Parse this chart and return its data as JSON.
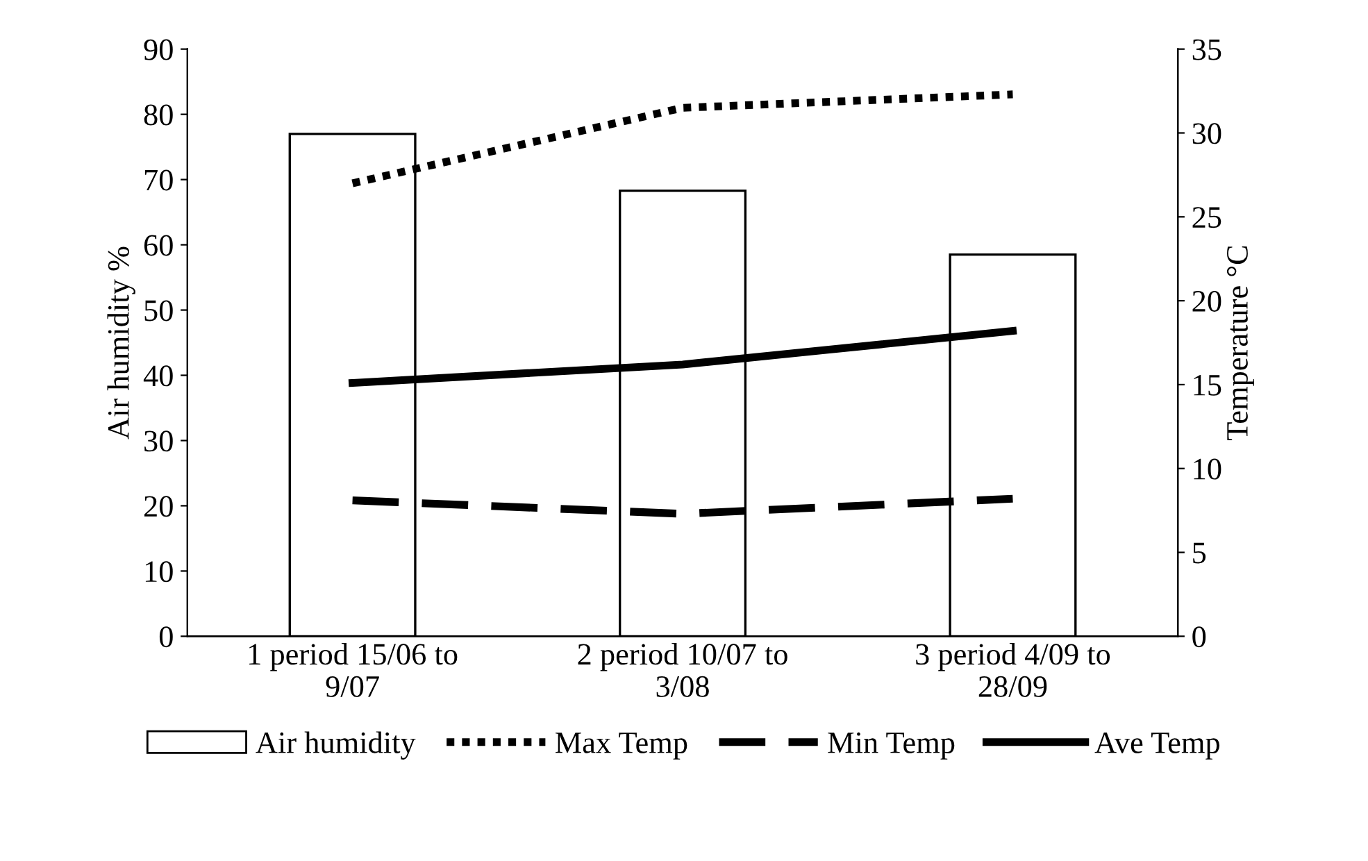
{
  "chart_data": {
    "type": "bar",
    "categories": [
      "1 period 15/06 to\n9/07",
      "2 period 10/07 to\n3/08",
      "3 period 4/09 to\n28/09"
    ],
    "ylabel": "Air humidity %",
    "y2label": "Temperature °C",
    "ylim": [
      0,
      90
    ],
    "yticks": [
      0,
      10,
      20,
      30,
      40,
      50,
      60,
      70,
      80,
      90
    ],
    "y2lim": [
      0,
      35
    ],
    "y2ticks": [
      0,
      5,
      10,
      15,
      20,
      25,
      30,
      35
    ],
    "series": [
      {
        "name": "Air humidity",
        "color": "#ffffff",
        "values": [
          77,
          68.3,
          58.5
        ]
      },
      {
        "name": "Max Temp",
        "type": "line",
        "axis": "y2",
        "color": "#000000",
        "line_style": "dotted",
        "values": [
          27.0,
          31.5,
          32.3
        ]
      },
      {
        "name": "Min Temp",
        "type": "line",
        "axis": "y2",
        "color": "#000000",
        "line_style": "dashed",
        "values": [
          8.1,
          7.3,
          8.2
        ]
      },
      {
        "name": "Ave Temp",
        "type": "line",
        "axis": "y2",
        "color": "#000000",
        "line_style": "solid",
        "values": [
          15.1,
          16.2,
          18.2
        ]
      }
    ],
    "legend": "bottom",
    "grid": false
  }
}
